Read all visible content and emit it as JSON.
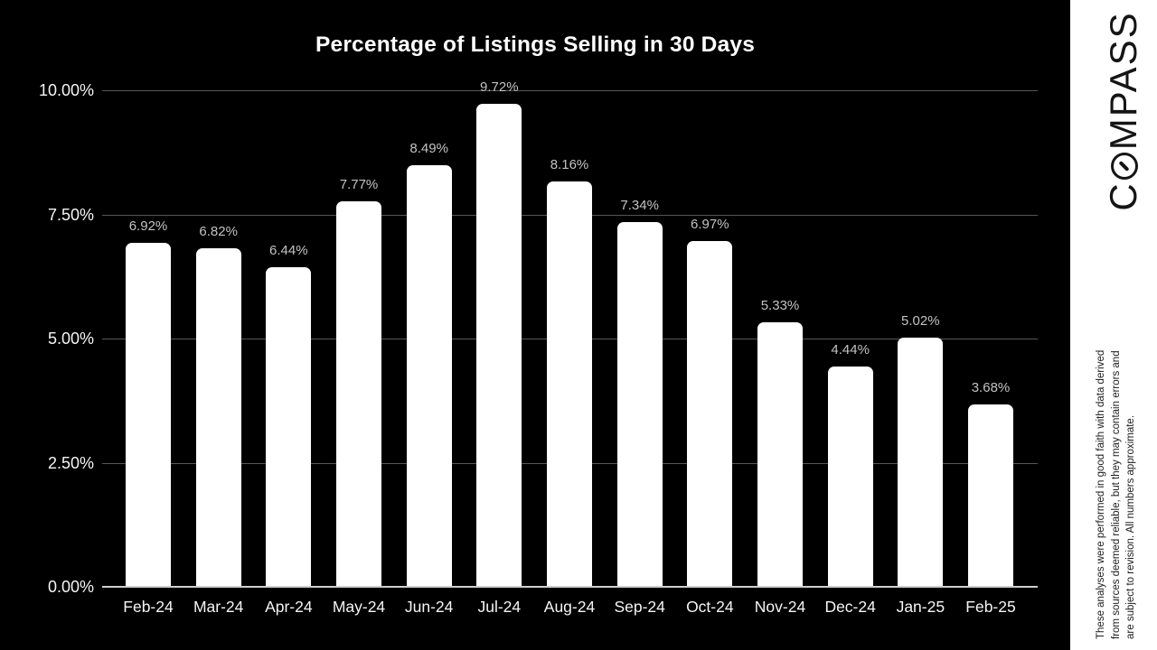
{
  "chart_data": {
    "type": "bar",
    "title": "Percentage of Listings Selling in 30 Days",
    "categories": [
      "Feb-24",
      "Mar-24",
      "Apr-24",
      "May-24",
      "Jun-24",
      "Jul-24",
      "Aug-24",
      "Sep-24",
      "Oct-24",
      "Nov-24",
      "Dec-24",
      "Jan-25",
      "Feb-25"
    ],
    "values": [
      6.92,
      6.82,
      6.44,
      7.77,
      8.49,
      9.72,
      8.16,
      7.34,
      6.97,
      5.33,
      4.44,
      5.02,
      3.68
    ],
    "value_labels": [
      "6.92%",
      "6.82%",
      "6.44%",
      "7.77%",
      "8.49%",
      "9.72%",
      "8.16%",
      "7.34%",
      "6.97%",
      "5.33%",
      "4.44%",
      "5.02%",
      "3.68%"
    ],
    "xlabel": "",
    "ylabel": "",
    "ylim": [
      0,
      10
    ],
    "y_ticks": [
      {
        "value": 0.0,
        "label": "0.00%"
      },
      {
        "value": 2.5,
        "label": "2.50%"
      },
      {
        "value": 5.0,
        "label": "5.00%"
      },
      {
        "value": 7.5,
        "label": "7.50%"
      },
      {
        "value": 10.0,
        "label": "10.00%"
      }
    ],
    "grid": true,
    "legend": false
  },
  "branding": {
    "logo_full": "COMPASS",
    "logo_prefix": "C",
    "logo_suffix": "MPASS"
  },
  "disclaimer": {
    "line1": "These analyses were performed in good faith with data derived",
    "line2": "from sources deemed reliable, but they may contain errors and",
    "line3": "are subject to revision. All numbers approximate."
  },
  "colors": {
    "background": "#000000",
    "bar": "#ffffff",
    "gridline": "#565656",
    "axis_line": "#cfcfcf",
    "axis_label": "#f5f5f5",
    "data_label": "#c3c3c3",
    "panel": "#ffffff",
    "logo": "#151515",
    "disclaimer_text": "#1c1c1c"
  }
}
